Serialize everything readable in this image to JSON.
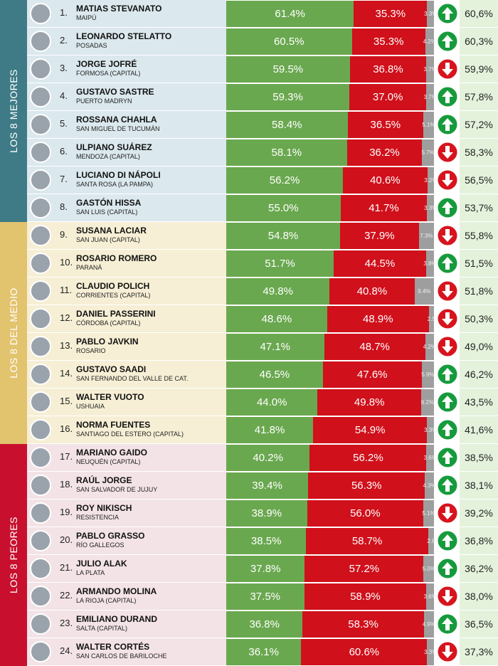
{
  "groups": [
    {
      "label": "LOS 8 MEJORES",
      "rows": [
        {
          "rank": "1.",
          "name": "MATIAS STEVANATO",
          "city": "MAIPÚ",
          "values": [
            61.4,
            35.3,
            3.3
          ],
          "value_labels": [
            "61.4%",
            "35.3%",
            "3.3%"
          ],
          "trend": "up",
          "previous": "60,6%"
        },
        {
          "rank": "2.",
          "name": "LEONARDO STELATTO",
          "city": "POSADAS",
          "values": [
            60.5,
            35.3,
            4.2
          ],
          "value_labels": [
            "60.5%",
            "35.3%",
            "4.2%"
          ],
          "trend": "up",
          "previous": "60,3%"
        },
        {
          "rank": "3.",
          "name": "JORGE JOFRÉ",
          "city": "FORMOSA (CAPITAL)",
          "values": [
            59.5,
            36.8,
            3.7
          ],
          "value_labels": [
            "59.5%",
            "36.8%",
            "3.7%"
          ],
          "trend": "down",
          "previous": "59,9%"
        },
        {
          "rank": "4.",
          "name": "GUSTAVO SASTRE",
          "city": "PUERTO MADRYN",
          "values": [
            59.3,
            37.0,
            3.7
          ],
          "value_labels": [
            "59.3%",
            "37.0%",
            "3.7%"
          ],
          "trend": "up",
          "previous": "57,8%"
        },
        {
          "rank": "5.",
          "name": "ROSSANA CHAHLA",
          "city": "SAN MIGUEL DE TUCUMÁN",
          "values": [
            58.4,
            36.5,
            5.1
          ],
          "value_labels": [
            "58.4%",
            "36.5%",
            "5.1%"
          ],
          "trend": "up",
          "previous": "57,2%"
        },
        {
          "rank": "6.",
          "name": "ULPIANO SUÁREZ",
          "city": "MENDOZA (CAPITAL)",
          "values": [
            58.1,
            36.2,
            5.7
          ],
          "value_labels": [
            "58.1%",
            "36.2%",
            "5.7%"
          ],
          "trend": "down",
          "previous": "58,3%"
        },
        {
          "rank": "7.",
          "name": "LUCIANO DI NÁPOLI",
          "city": "SANTA ROSA (LA PAMPA)",
          "values": [
            56.2,
            40.6,
            3.2
          ],
          "value_labels": [
            "56.2%",
            "40.6%",
            "3.2%"
          ],
          "trend": "down",
          "previous": "56,5%"
        },
        {
          "rank": "8.",
          "name": "GASTÓN HISSA",
          "city": "SAN LUIS (CAPITAL)",
          "values": [
            55.0,
            41.7,
            3.3
          ],
          "value_labels": [
            "55.0%",
            "41.7%",
            "3.3%"
          ],
          "trend": "up",
          "previous": "53,7%"
        }
      ]
    },
    {
      "label": "LOS 8 DEL MEDIO",
      "rows": [
        {
          "rank": "9.",
          "name": "SUSANA LACIAR",
          "city": "SAN JUAN (CAPITAL)",
          "values": [
            54.8,
            37.9,
            7.3
          ],
          "value_labels": [
            "54.8%",
            "37.9%",
            "7.3%"
          ],
          "trend": "down",
          "previous": "55,8%"
        },
        {
          "rank": "10.",
          "name": "ROSARIO ROMERO",
          "city": "PARANÁ",
          "values": [
            51.7,
            44.5,
            3.8
          ],
          "value_labels": [
            "51.7%",
            "44.5%",
            "3.8%"
          ],
          "trend": "up",
          "previous": "51,5%"
        },
        {
          "rank": "11.",
          "name": "CLAUDIO POLICH",
          "city": "CORRIENTES (CAPITAL)",
          "values": [
            49.8,
            40.8,
            9.4
          ],
          "value_labels": [
            "49.8%",
            "40.8%",
            "9.4%"
          ],
          "trend": "down",
          "previous": "51,8%"
        },
        {
          "rank": "12.",
          "name": "DANIEL PASSERINI",
          "city": "CÓRDOBA (CAPITAL)",
          "values": [
            48.6,
            48.9,
            2.5
          ],
          "value_labels": [
            "48.6%",
            "48.9%",
            "2.5"
          ],
          "trend": "down",
          "previous": "50,3%"
        },
        {
          "rank": "13.",
          "name": "PABLO JAVKIN",
          "city": "ROSARIO",
          "values": [
            47.1,
            48.7,
            4.2
          ],
          "value_labels": [
            "47.1%",
            "48.7%",
            "4.2%"
          ],
          "trend": "down",
          "previous": "49,0%"
        },
        {
          "rank": "14.",
          "name": "GUSTAVO SAADI",
          "city": "SAN FERNANDO DEL VALLE DE CAT.",
          "values": [
            46.5,
            47.6,
            5.9
          ],
          "value_labels": [
            "46.5%",
            "47.6%",
            "5.9%"
          ],
          "trend": "up",
          "previous": "46,2%"
        },
        {
          "rank": "15.",
          "name": "WALTER VUOTO",
          "city": "USHUAIA",
          "values": [
            44.0,
            49.8,
            6.2
          ],
          "value_labels": [
            "44.0%",
            "49.8%",
            "6.2%"
          ],
          "trend": "up",
          "previous": "43,5%"
        },
        {
          "rank": "16.",
          "name": "NORMA FUENTES",
          "city": "SANTIAGO DEL ESTERO (CAPITAL)",
          "values": [
            41.8,
            54.9,
            3.3
          ],
          "value_labels": [
            "41.8%",
            "54.9%",
            "3.3%"
          ],
          "trend": "up",
          "previous": "41,6%"
        }
      ]
    },
    {
      "label": "LOS 8 PEORES",
      "rows": [
        {
          "rank": "17.",
          "name": "MARIANO GAIDO",
          "city": "NEUQUÉN (CAPITAL)",
          "values": [
            40.2,
            56.2,
            3.6
          ],
          "value_labels": [
            "40.2%",
            "56.2%",
            "3.6%"
          ],
          "trend": "up",
          "previous": "38,5%"
        },
        {
          "rank": "18.",
          "name": "RAÚL JORGE",
          "city": "SAN SALVADOR DE JUJUY",
          "values": [
            39.4,
            56.3,
            4.3
          ],
          "value_labels": [
            "39.4%",
            "56.3%",
            "4.3%"
          ],
          "trend": "up",
          "previous": "38,1%"
        },
        {
          "rank": "19.",
          "name": "ROY NIKISCH",
          "city": "RESISTENCIA",
          "values": [
            38.9,
            56.0,
            5.1
          ],
          "value_labels": [
            "38.9%",
            "56.0%",
            "5.1%"
          ],
          "trend": "down",
          "previous": "39,2%"
        },
        {
          "rank": "20.",
          "name": "PABLO GRASSO",
          "city": "RÍO GALLEGOS",
          "values": [
            38.5,
            58.7,
            2.8
          ],
          "value_labels": [
            "38.5%",
            "58.7%",
            "2.8"
          ],
          "trend": "up",
          "previous": "36,8%"
        },
        {
          "rank": "21.",
          "name": "JULIO ALAK",
          "city": "LA PLATA",
          "values": [
            37.8,
            57.2,
            5.0
          ],
          "value_labels": [
            "37.8%",
            "57.2%",
            "5.0%"
          ],
          "trend": "up",
          "previous": "36,2%"
        },
        {
          "rank": "22.",
          "name": "ARMANDO MOLINA",
          "city": "LA RIOJA (CAPITAL)",
          "values": [
            37.5,
            58.9,
            3.6
          ],
          "value_labels": [
            "37.5%",
            "58.9%",
            "3.6%"
          ],
          "trend": "down",
          "previous": "38,0%"
        },
        {
          "rank": "23.",
          "name": "EMILIANO DURAND",
          "city": "SALTA (CAPITAL)",
          "values": [
            36.8,
            58.3,
            4.9
          ],
          "value_labels": [
            "36.8%",
            "58.3%",
            "4.9%"
          ],
          "trend": "up",
          "previous": "36,5%"
        },
        {
          "rank": "24.",
          "name": "WALTER CORTÉS",
          "city": "SAN CARLOS DE BARILOCHE",
          "values": [
            36.1,
            60.6,
            3.3
          ],
          "value_labels": [
            "36.1%",
            "60.6%",
            "3.3%"
          ],
          "trend": "down",
          "previous": "37,3%"
        }
      ]
    }
  ]
}
